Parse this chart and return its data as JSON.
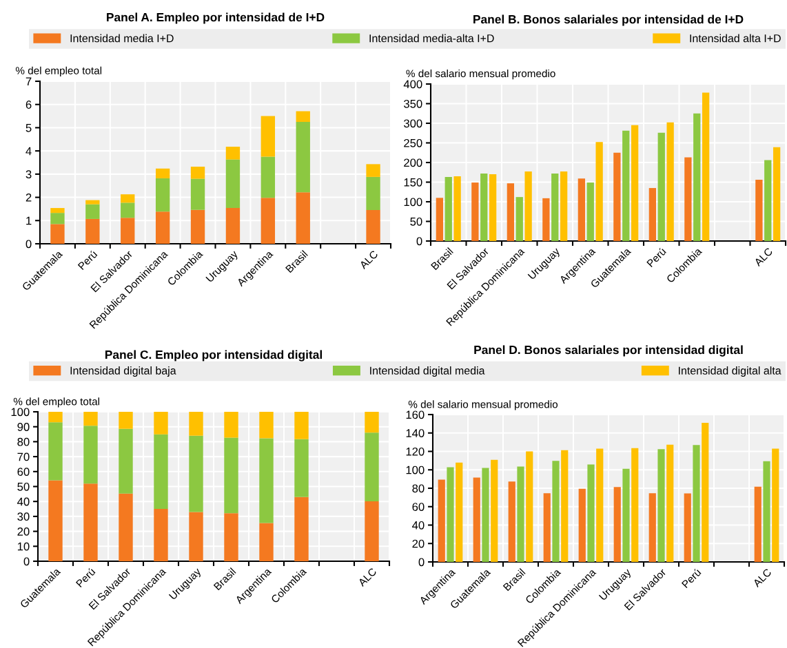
{
  "chart_data": [
    {
      "type": "bar",
      "title": "Panel A. Empleo por intensidad de I+D",
      "ylabel": "% del empleo total",
      "stacked": true,
      "grid": true,
      "legend": "top",
      "categories": [
        "Guatemala",
        "Perú",
        "El Salvador",
        "República Dominicana",
        "Colombia",
        "Uruguay",
        "Argentina",
        "Brasil",
        null,
        "ALC"
      ],
      "ylim": [
        0,
        7
      ],
      "yticks": [
        0,
        1,
        2,
        3,
        4,
        5,
        6,
        7
      ],
      "series": [
        {
          "name": "Intensidad media I+D",
          "color": "#f47920",
          "values": [
            0.85,
            1.07,
            1.12,
            1.39,
            1.46,
            1.54,
            1.98,
            2.22,
            null,
            1.45
          ]
        },
        {
          "name": "Intensidad media-alta I+D",
          "color": "#8cc841",
          "values": [
            0.48,
            0.63,
            0.65,
            1.43,
            1.34,
            2.09,
            1.77,
            3.03,
            null,
            1.43
          ]
        },
        {
          "name": "Intensidad alta I+D",
          "color": "#ffc000",
          "values": [
            0.21,
            0.18,
            0.36,
            0.42,
            0.52,
            0.55,
            1.75,
            0.46,
            null,
            0.55
          ]
        }
      ]
    },
    {
      "type": "bar",
      "title": "Panel B. Bonos salariales por intensidad de I+D",
      "ylabel": "% del salario mensual promedio",
      "grid": true,
      "categories": [
        "Brasil",
        "El Salvador",
        "República Dominicana",
        "Uruguay",
        "Argentina",
        "Guatemala",
        "Perú",
        "Colombia",
        null,
        "ALC"
      ],
      "ylim": [
        0,
        400
      ],
      "yticks": [
        0,
        50,
        100,
        150,
        200,
        250,
        300,
        350,
        400
      ],
      "series": [
        {
          "color": "#f47920",
          "values": [
            110,
            149,
            147,
            109,
            159,
            225,
            135,
            213,
            null,
            156
          ]
        },
        {
          "color": "#8cc841",
          "values": [
            163,
            172,
            112,
            172,
            149,
            281,
            276,
            325,
            null,
            206
          ]
        },
        {
          "color": "#ffc000",
          "values": [
            165,
            170,
            177,
            177,
            252,
            295,
            302,
            378,
            null,
            239
          ]
        }
      ]
    },
    {
      "type": "bar",
      "title": "Panel C. Empleo por intensidad digital",
      "ylabel": "% del empleo total",
      "stacked": true,
      "grid": true,
      "legend": "top",
      "categories": [
        "Guatemala",
        "Perú",
        "El Salvador",
        "República Dominicana",
        "Uruguay",
        "Brasil",
        "Argentina",
        "Colombia",
        null,
        "ALC"
      ],
      "ylim": [
        0,
        100
      ],
      "yticks": [
        0,
        10,
        20,
        30,
        40,
        50,
        60,
        70,
        80,
        90,
        100
      ],
      "series": [
        {
          "name": "Intensidad digital baja",
          "color": "#f47920",
          "values": [
            54.2,
            52.0,
            45.3,
            35.0,
            32.9,
            32.1,
            25.6,
            43.0,
            null,
            40.1
          ]
        },
        {
          "name": "Intensidad digital media",
          "color": "#8cc841",
          "values": [
            38.8,
            38.7,
            43.3,
            49.9,
            51.1,
            50.6,
            56.7,
            38.7,
            null,
            46.0
          ]
        },
        {
          "name": "Intensidad digital alta",
          "color": "#ffc000",
          "values": [
            7.0,
            9.3,
            11.4,
            15.1,
            16.0,
            17.3,
            17.7,
            18.3,
            null,
            13.9
          ]
        }
      ]
    },
    {
      "type": "bar",
      "title": "Panel D. Bonos salariales por intensidad digital",
      "ylabel": "% del salario mensual promedio",
      "grid": true,
      "categories": [
        "Argentina",
        "Guatemala",
        "Brasil",
        "Colombia",
        "República Dominicana",
        "Uruguay",
        "El Salvador",
        "Perú",
        null,
        "ALC"
      ],
      "ylim": [
        0,
        160
      ],
      "yticks": [
        0,
        20,
        40,
        60,
        80,
        100,
        120,
        140,
        160
      ],
      "series": [
        {
          "color": "#f47920",
          "values": [
            89.4,
            91.5,
            87.2,
            74.6,
            79.5,
            81.3,
            74.6,
            74.4,
            null,
            81.6
          ]
        },
        {
          "color": "#8cc841",
          "values": [
            102.8,
            102.0,
            103.6,
            109.8,
            105.8,
            101.2,
            122.4,
            127.0,
            null,
            109.3
          ]
        },
        {
          "color": "#ffc000",
          "values": [
            107.9,
            110.9,
            120.0,
            121.3,
            123.0,
            123.5,
            127.2,
            151.1,
            null,
            123.0
          ]
        }
      ]
    }
  ]
}
